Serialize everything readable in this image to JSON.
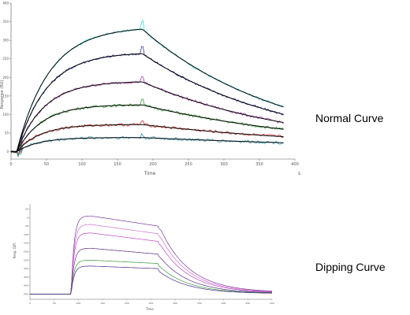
{
  "chart_data": [
    {
      "type": "line",
      "caption": "Normal Curve",
      "xlabel": "Time",
      "ylabel": "Response (RU)",
      "x_unit": "s",
      "xlim": [
        0,
        400
      ],
      "ylim": [
        -20,
        400
      ],
      "x_ticks": [
        "0",
        "50",
        "100",
        "150",
        "200",
        "250",
        "300",
        "350",
        "400"
      ],
      "y_ticks": [
        "0",
        "50",
        "100",
        "150",
        "200",
        "250",
        "300",
        "350",
        "400"
      ],
      "injection_end": 185,
      "dissociation_end": 385,
      "colors": {
        "fit": "#000000",
        "raw": [
          "#33e0e0",
          "#3838b0",
          "#b040b0",
          "#33a033",
          "#d03030",
          "#30a0c0"
        ]
      },
      "series": [
        {
          "plateau": 330,
          "end": 120
        },
        {
          "plateau": 264,
          "end": 100
        },
        {
          "plateau": 188,
          "end": 78
        },
        {
          "plateau": 126,
          "end": 60
        },
        {
          "plateau": 73,
          "end": 40
        },
        {
          "plateau": 38,
          "end": 24
        }
      ]
    },
    {
      "type": "line",
      "caption": "Dipping Curve",
      "xlabel": "Time",
      "ylabel": "Resp. Diff.",
      "xlim": [
        0,
        500
      ],
      "ylim": [
        -480,
        80
      ],
      "x_ticks": [
        "0",
        "50",
        "100",
        "150",
        "200",
        "250",
        "300",
        "350",
        "400",
        "450",
        "500"
      ],
      "y_ticks": [
        "50",
        "0",
        "-50",
        "-100",
        "-150",
        "-200",
        "-250",
        "-300",
        "-350",
        "-400",
        "-450"
      ],
      "baseline": -450,
      "injection_start": 85,
      "injection_end": 265,
      "colors": [
        "#7a3a9a",
        "#d070d0",
        "#c040c0",
        "#5a2a8a",
        "#3a9a3a",
        "#4a2a8a"
      ],
      "series": [
        {
          "peak": 10,
          "plateau_end": -50,
          "end": -440
        },
        {
          "peak": -40,
          "plateau_end": -95,
          "end": -442
        },
        {
          "peak": -90,
          "plateau_end": -140,
          "end": -443
        },
        {
          "peak": -180,
          "plateau_end": -215,
          "end": -445
        },
        {
          "peak": -250,
          "plateau_end": -270,
          "end": -446
        },
        {
          "peak": -285,
          "plateau_end": -300,
          "end": -447
        }
      ]
    }
  ]
}
